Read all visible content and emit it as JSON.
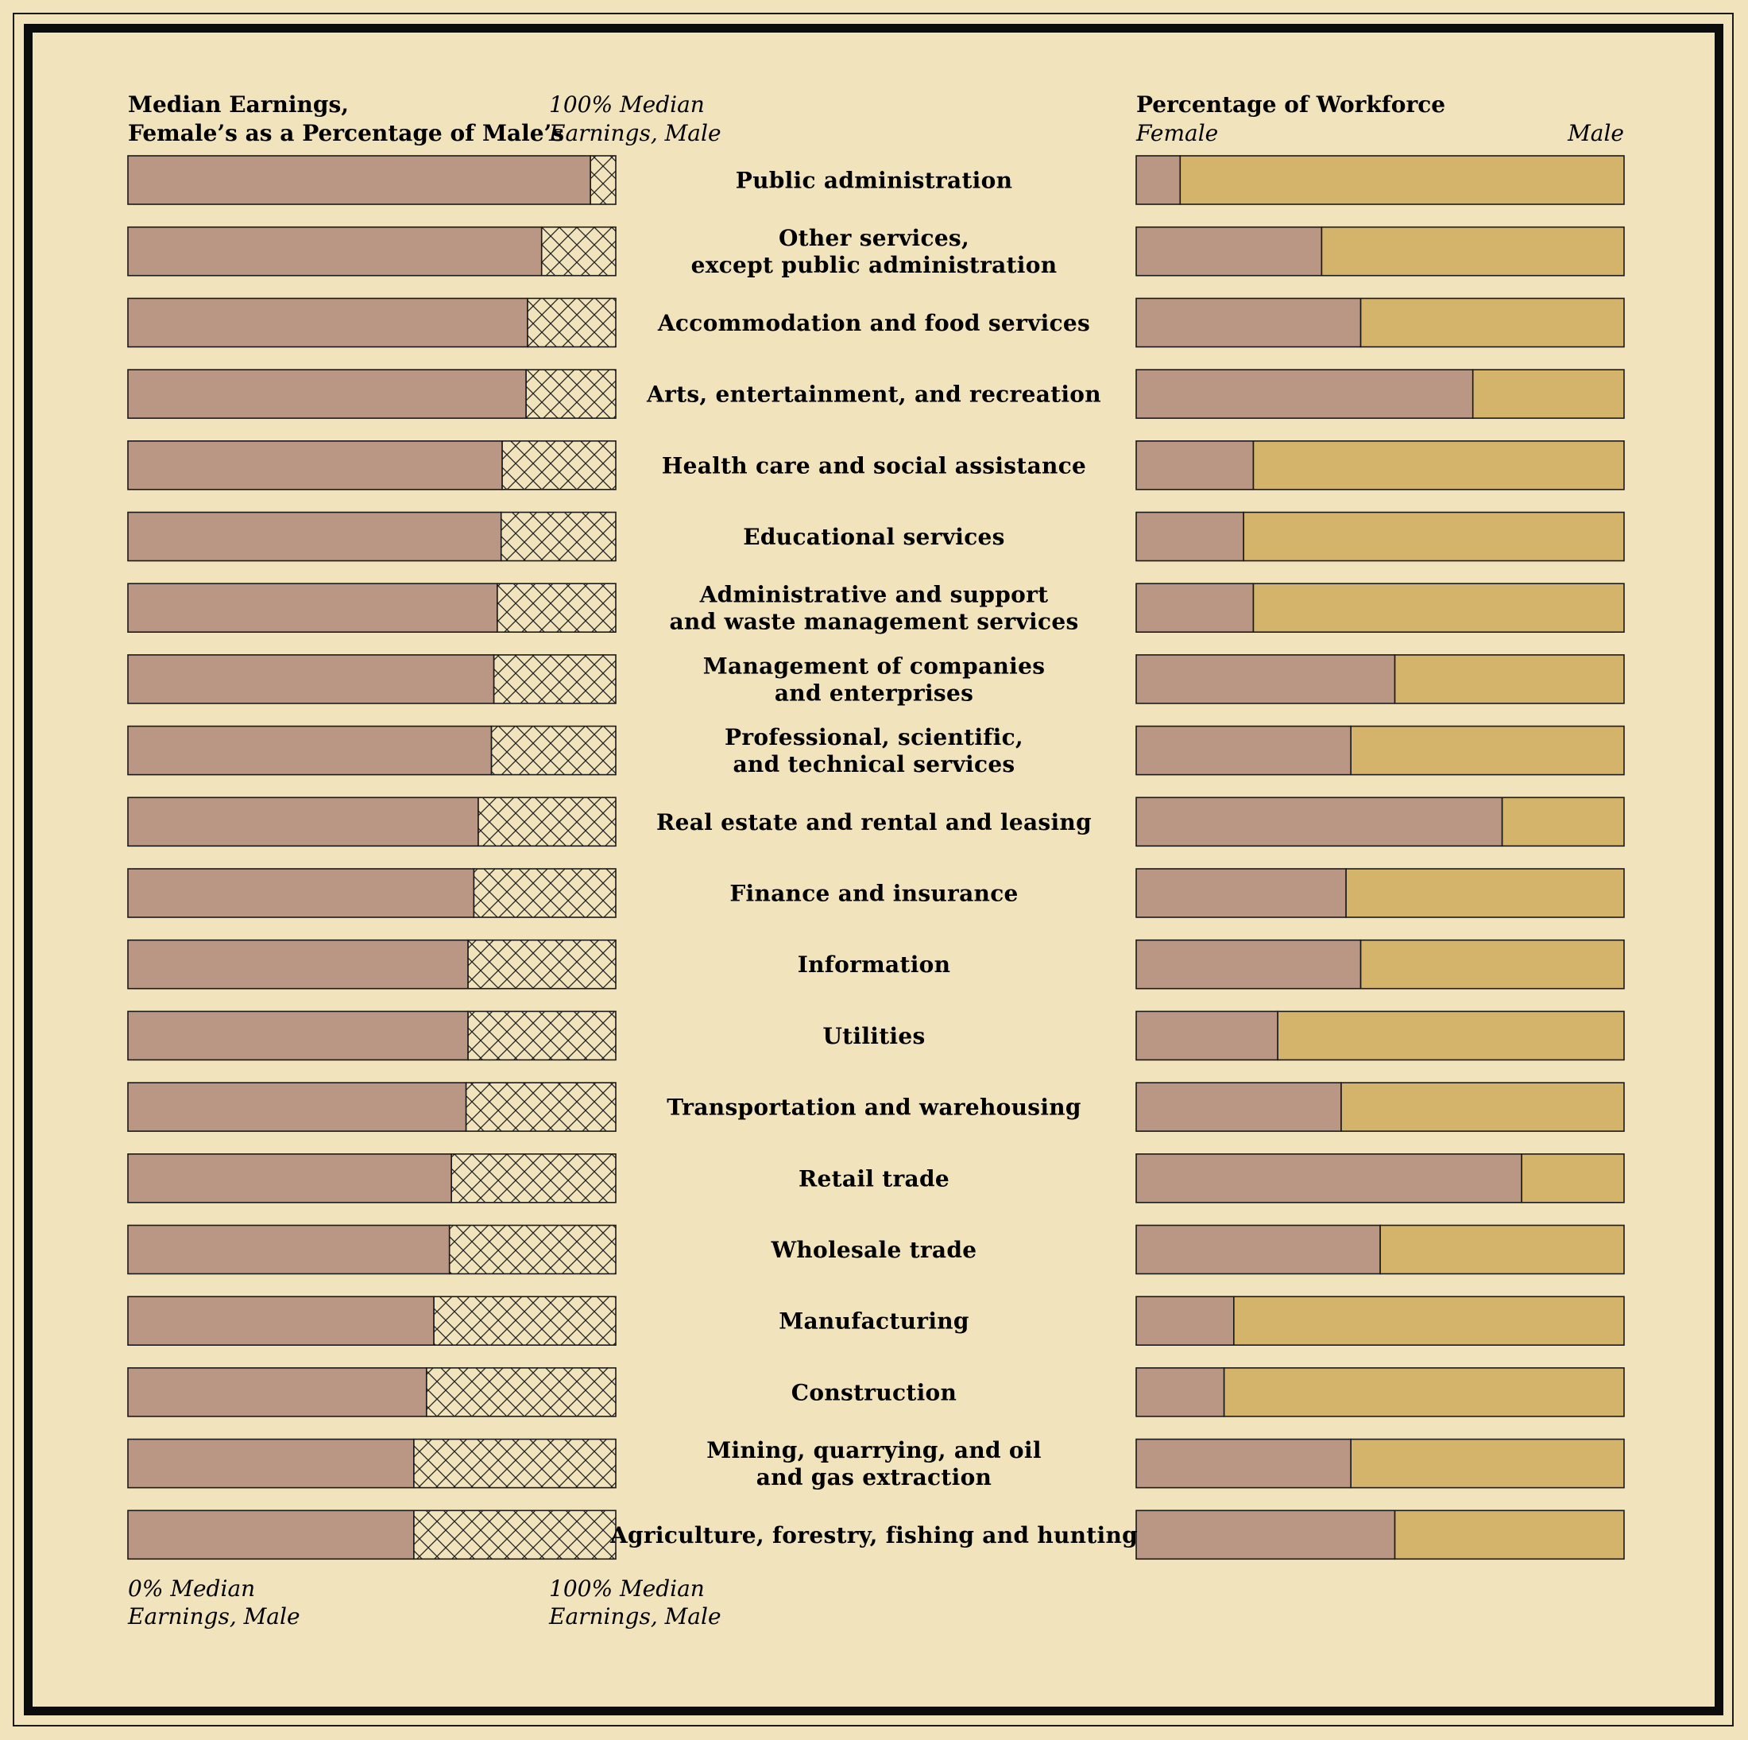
{
  "chart_data": {
    "type": "bar",
    "left_panel": {
      "title": [
        "Median Earnings,",
        "Female’s as a Percentage of Male’s"
      ],
      "top_reference_label": [
        "100% Median",
        "Earnings, Male"
      ],
      "bottom_left_label": [
        "0% Median",
        "Earnings, Male"
      ],
      "bottom_right_label": [
        "100% Median",
        "Earnings, Male"
      ],
      "xlim": [
        0,
        100
      ]
    },
    "right_panel": {
      "title": "Percentage of Workforce",
      "left_label": "Female",
      "right_label": "Male",
      "xlim": [
        0,
        100
      ]
    },
    "categories": [
      [
        "Public administration"
      ],
      [
        "Other services,",
        "except public administration"
      ],
      [
        "Accommodation and food services"
      ],
      [
        "Arts, entertainment, and recreation"
      ],
      [
        "Health care and social assistance"
      ],
      [
        "Educational services"
      ],
      [
        "Administrative and support",
        "and waste management services"
      ],
      [
        "Management of companies",
        "and enterprises"
      ],
      [
        "Professional, scientific,",
        "and technical services"
      ],
      [
        "Real estate and rental and leasing"
      ],
      [
        "Finance and insurance"
      ],
      [
        "Information"
      ],
      [
        "Utilities"
      ],
      [
        "Transportation and warehousing"
      ],
      [
        "Retail trade"
      ],
      [
        "Wholesale trade"
      ],
      [
        "Manufacturing"
      ],
      [
        "Construction"
      ],
      [
        "Mining, quarrying, and oil",
        "and gas extraction"
      ],
      [
        "Agriculture, forestry, fishing and hunting"
      ]
    ],
    "earnings_ratio_pct": [
      94.8,
      84.8,
      81.9,
      81.6,
      76.7,
      76.5,
      75.7,
      75.0,
      74.5,
      71.8,
      70.9,
      69.7,
      69.7,
      69.3,
      66.3,
      65.9,
      62.7,
      61.2,
      58.6,
      58.6
    ],
    "female_workforce_pct": [
      9,
      38,
      46,
      69,
      24,
      22,
      24,
      53,
      44,
      75,
      43,
      46,
      29,
      42,
      79,
      50,
      20,
      18,
      44,
      53
    ],
    "colors": {
      "background": "#f1e3bc",
      "female": "#b99784",
      "male": "#d4b36b",
      "hatch_fill": "#f1e3bc",
      "outline": "#1a1a1a"
    }
  }
}
